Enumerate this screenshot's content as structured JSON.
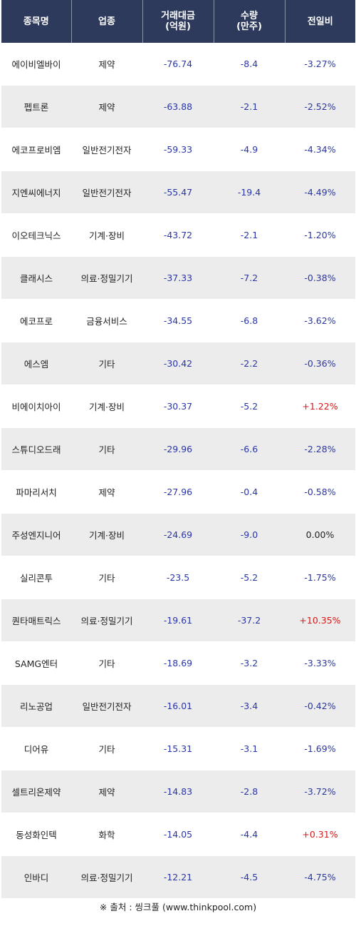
{
  "headers": {
    "name": "종목명",
    "sector": "업종",
    "amount_l1": "거래대금",
    "amount_l2": "(억원)",
    "volume_l1": "수량",
    "volume_l2": "(만주)",
    "change": "전일비"
  },
  "rows": [
    {
      "name": "에이비엘바이",
      "sector": "제약",
      "amount": "-76.74",
      "volume": "-8.4",
      "change": "-3.27%",
      "dir": "down"
    },
    {
      "name": "펩트론",
      "sector": "제약",
      "amount": "-63.88",
      "volume": "-2.1",
      "change": "-2.52%",
      "dir": "down"
    },
    {
      "name": "에코프로비엠",
      "sector": "일반전기전자",
      "amount": "-59.33",
      "volume": "-4.9",
      "change": "-4.34%",
      "dir": "down"
    },
    {
      "name": "지엔씨에너지",
      "sector": "일반전기전자",
      "amount": "-55.47",
      "volume": "-19.4",
      "change": "-4.49%",
      "dir": "down"
    },
    {
      "name": "이오테크닉스",
      "sector": "기계·장비",
      "amount": "-43.72",
      "volume": "-2.1",
      "change": "-1.20%",
      "dir": "down"
    },
    {
      "name": "클래시스",
      "sector": "의료·정밀기기",
      "amount": "-37.33",
      "volume": "-7.2",
      "change": "-0.38%",
      "dir": "down"
    },
    {
      "name": "에코프로",
      "sector": "금융서비스",
      "amount": "-34.55",
      "volume": "-6.8",
      "change": "-3.62%",
      "dir": "down"
    },
    {
      "name": "에스엠",
      "sector": "기타",
      "amount": "-30.42",
      "volume": "-2.2",
      "change": "-0.36%",
      "dir": "down"
    },
    {
      "name": "비에이치아이",
      "sector": "기계·장비",
      "amount": "-30.37",
      "volume": "-5.2",
      "change": "+1.22%",
      "dir": "up"
    },
    {
      "name": "스튜디오드래",
      "sector": "기타",
      "amount": "-29.96",
      "volume": "-6.6",
      "change": "-2.28%",
      "dir": "down"
    },
    {
      "name": "파마리서치",
      "sector": "제약",
      "amount": "-27.96",
      "volume": "-0.4",
      "change": "-0.58%",
      "dir": "down"
    },
    {
      "name": "주성엔지니어",
      "sector": "기계·장비",
      "amount": "-24.69",
      "volume": "-9.0",
      "change": "0.00%",
      "dir": "flat"
    },
    {
      "name": "실리콘투",
      "sector": "기타",
      "amount": "-23.5",
      "volume": "-5.2",
      "change": "-1.75%",
      "dir": "down"
    },
    {
      "name": "퀀타매트릭스",
      "sector": "의료·정밀기기",
      "amount": "-19.61",
      "volume": "-37.2",
      "change": "+10.35%",
      "dir": "up"
    },
    {
      "name": "SAMG엔터",
      "sector": "기타",
      "amount": "-18.69",
      "volume": "-3.2",
      "change": "-3.33%",
      "dir": "down"
    },
    {
      "name": "리노공업",
      "sector": "일반전기전자",
      "amount": "-16.01",
      "volume": "-3.4",
      "change": "-0.42%",
      "dir": "down"
    },
    {
      "name": "디어유",
      "sector": "기타",
      "amount": "-15.31",
      "volume": "-3.1",
      "change": "-1.69%",
      "dir": "down"
    },
    {
      "name": "셀트리온제약",
      "sector": "제약",
      "amount": "-14.83",
      "volume": "-2.8",
      "change": "-3.72%",
      "dir": "down"
    },
    {
      "name": "동성화인텍",
      "sector": "화학",
      "amount": "-14.05",
      "volume": "-4.4",
      "change": "+0.31%",
      "dir": "up"
    },
    {
      "name": "인바디",
      "sector": "의료·정밀기기",
      "amount": "-12.21",
      "volume": "-4.5",
      "change": "-4.75%",
      "dir": "down"
    }
  ],
  "source": "※ 출처 : 씽크풀 (www.thinkpool.com)",
  "colors": {
    "header_bg": "#2e3a5c",
    "negative": "#2a36a8",
    "positive": "#d21a1a",
    "stripe": "#ececec"
  }
}
